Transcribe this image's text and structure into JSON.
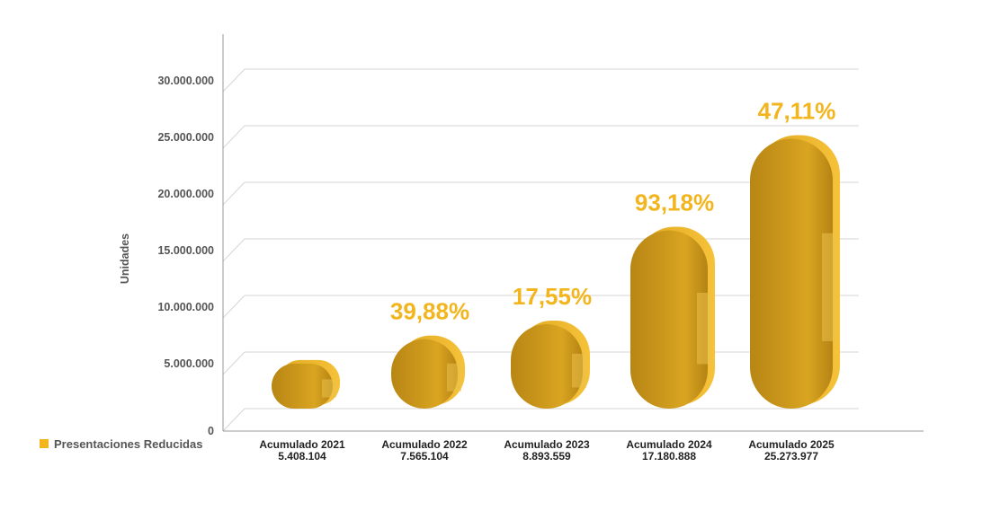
{
  "chart_data": {
    "type": "bar",
    "ylabel": "Unidades",
    "ylim": [
      0,
      30000000
    ],
    "y_ticks": [
      {
        "value": 0,
        "label": "0"
      },
      {
        "value": 5000000,
        "label": "5.000.000"
      },
      {
        "value": 10000000,
        "label": "10.000.000"
      },
      {
        "value": 15000000,
        "label": "15.000.000"
      },
      {
        "value": 20000000,
        "label": "20.000.000"
      },
      {
        "value": 25000000,
        "label": "25.000.000"
      },
      {
        "value": 30000000,
        "label": "30.000.000"
      }
    ],
    "grid": true,
    "legend_position": "bottom-left",
    "series": [
      {
        "name": "Presentaciones Reducidas",
        "color": "#F2B51E",
        "values": [
          5408104,
          7565104,
          8893559,
          17180888,
          25273977
        ]
      }
    ],
    "categories": [
      "Acumulado 2021",
      "Acumulado 2022",
      "Acumulado 2023",
      "Acumulado 2024",
      "Acumulado 2025"
    ],
    "value_labels": [
      "5.408.104",
      "7.565.104",
      "8.893.559",
      "17.180.888",
      "25.273.977"
    ],
    "growth_labels": [
      "",
      "39,88%",
      "17,55%",
      "93,18%",
      "47,11%"
    ],
    "growth_label_color": "#F2B51E",
    "bar_shape": "capsule"
  }
}
